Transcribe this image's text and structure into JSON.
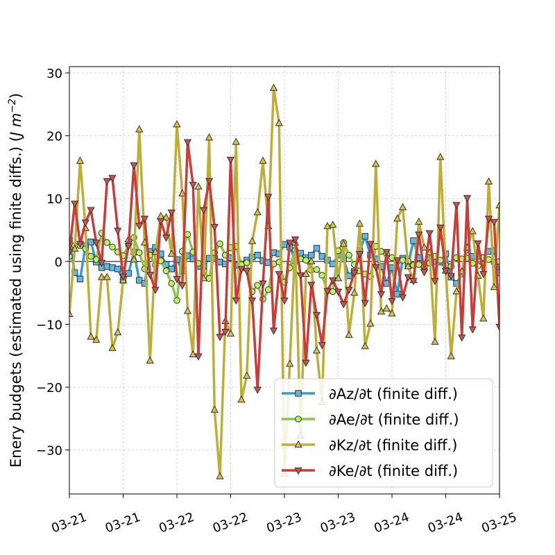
{
  "chart_data": {
    "type": "line",
    "title": "",
    "xlabel": "",
    "ylabel": "Enery budgets (estimated using finite diffs.) ($J\\,m^{-2}$)",
    "ylabel_text": "Enery budgets (estimated using finite diffs.) (",
    "ylabel_unit": "J m",
    "ylabel_exp": "−2",
    "ylim": [
      -37,
      31
    ],
    "yticks": [
      -30,
      -20,
      -10,
      0,
      10,
      20,
      30
    ],
    "ytick_labels": [
      "−30",
      "−20",
      "−10",
      "0",
      "10",
      "20",
      "30"
    ],
    "xlim": [
      0,
      80
    ],
    "xticks": [
      0,
      10,
      20,
      30,
      40,
      50,
      60,
      70,
      80
    ],
    "xtick_labels": [
      "03-21",
      "03-21",
      "03-22",
      "03-22",
      "03-23",
      "03-23",
      "03-24",
      "03-24",
      "03-25"
    ],
    "grid": true,
    "legend_position": "lower-right",
    "series": [
      {
        "name": "∂Az/∂t (finite diff.)",
        "color": "#3a9bc8",
        "marker": "square",
        "values": [
          3.4,
          -1.8,
          -2.8,
          2.5,
          3.1,
          -0.1,
          -1.0,
          -0.8,
          -1.0,
          -1.2,
          -3.0,
          -1.9,
          1.5,
          -3.0,
          -3.5,
          1.6,
          2.2,
          1.2,
          -0.5,
          -1.2,
          0.3,
          -1.5,
          0.9,
          0.4,
          -0.8,
          -0.8,
          0.5,
          0.5,
          -0.1,
          -0.4,
          0.6,
          -0.6,
          -0.4,
          0.2,
          0.7,
          1.0,
          0.1,
          -0.2,
          1.4,
          1.2,
          2.7,
          2.3,
          0.1,
          1.3,
          0.6,
          1.0,
          2.1,
          0.8,
          0.2,
          -0.4,
          1.0,
          0.4,
          -2.3,
          -1.6,
          1.7,
          4.0,
          1.0,
          0.4,
          -0.8,
          -3.5,
          -1.0,
          -5.2,
          0.5,
          -0.5,
          3.3,
          0.6,
          -0.7,
          0.3,
          0.0,
          -0.1,
          1.2,
          -2.5,
          -3.5,
          -2.0,
          1.9,
          0.8,
          0.8,
          0.6,
          1.6,
          1.7,
          -1.8
        ]
      },
      {
        "name": "∂Ae/∂t (finite diff.)",
        "color": "#8cc44e",
        "marker": "circle",
        "values": [
          0.8,
          2.5,
          2.5,
          2.0,
          0.8,
          0.3,
          4.5,
          3.0,
          2.3,
          1.5,
          0.9,
          2.6,
          3.8,
          1.4,
          -1.2,
          1.0,
          -0.6,
          0.1,
          -1.5,
          -3.5,
          -6.2,
          1.6,
          4.3,
          1.5,
          -0.3,
          -1.5,
          -2.7,
          1.4,
          2.8,
          1.0,
          2.2,
          2.4,
          -0.5,
          -0.2,
          -4.8,
          -3.8,
          -6.0,
          -4.5,
          -0.4,
          -0.1,
          -3.3,
          -1.0,
          1.8,
          0.4,
          0.2,
          -1.4,
          -1.3,
          -2.2,
          -4.7,
          -4.8,
          1.7,
          3.0,
          1.0,
          -0.5,
          -1.5,
          -2.0,
          -2.4,
          2.4,
          1.6,
          1.2,
          0.6,
          0.0,
          0.2,
          0.0,
          -0.6,
          -0.5,
          -0.8,
          -0.3,
          0.8,
          0.2,
          -0.6,
          -0.8,
          0.6,
          0.4,
          0.5,
          -0.3,
          -0.7,
          0.6,
          0.3,
          -0.2,
          0.0,
          0.5,
          0.4
        ]
      },
      {
        "name": "∂Kz/∂t (finite diff.)",
        "color": "#bfad39",
        "marker": "triangle-up",
        "values": [
          -8.4,
          2.0,
          16.0,
          5.3,
          -12.0,
          -12.5,
          -2.5,
          -2.5,
          -13.8,
          -11.3,
          -3.0,
          3.5,
          0.3,
          21.0,
          3.0,
          -15.8,
          1.5,
          7.2,
          7.0,
          1.2,
          21.8,
          10.8,
          -7.9,
          -14.8,
          11.9,
          -2.7,
          19.7,
          -23.6,
          -34.2,
          -9.5,
          -11.5,
          19.0,
          -22.0,
          -18.2,
          3.2,
          7.8,
          16.0,
          5.6,
          27.6,
          22.0,
          -33.8,
          -16.3,
          3.0,
          -27.7,
          -2.0,
          0.0,
          -14.2,
          -22.4,
          5.6,
          5.8,
          -2.7,
          2.8,
          -11.7,
          -5.0,
          6.0,
          -13.5,
          -9.9,
          15.5,
          -8.0,
          -7.5,
          -8.3,
          6.8,
          8.6,
          -0.8,
          -3.0,
          6.3,
          2.2,
          1.4,
          -12.8,
          16.6,
          -1.5,
          -15.1,
          -4.8,
          -1.6,
          2.2,
          4.8,
          -2.3,
          -9.1,
          12.7,
          -4.1,
          8.9
        ]
      },
      {
        "name": "∂Ke/∂t (finite diff.)",
        "color": "#c63d39",
        "marker": "triangle-down",
        "values": [
          1.5,
          9.2,
          2.8,
          6.2,
          8.2,
          3.0,
          -0.2,
          12.8,
          13.3,
          4.9,
          -2.4,
          2.5,
          15.3,
          5.7,
          6.8,
          -2.1,
          -4.5,
          6.4,
          3.8,
          7.8,
          -2.8,
          -3.8,
          19.0,
          12.2,
          -15.1,
          8.2,
          12.8,
          5.5,
          -12.0,
          -11.2,
          16.2,
          -6.2,
          -1.2,
          -1.5,
          -6.2,
          -20.4,
          -3.5,
          10.3,
          -11.0,
          -2.0,
          -6.2,
          3.0,
          3.5,
          -2.2,
          -16.1,
          -3.7,
          -8.5,
          -13.3,
          -4.7,
          -3.0,
          -4.8,
          -6.8,
          -4.5,
          -1.8,
          1.2,
          -6.6,
          2.8,
          -0.9,
          -5.2,
          1.5,
          -6.3,
          0.2,
          -5.7,
          -2.5,
          -3.1,
          4.3,
          -1.7,
          4.5,
          -3.1,
          5.4,
          -1.5,
          -2.3,
          9.0,
          -12.1,
          10.1,
          -10.8,
          2.9,
          -2.0,
          6.8,
          6.3,
          -10.4
        ]
      }
    ]
  }
}
